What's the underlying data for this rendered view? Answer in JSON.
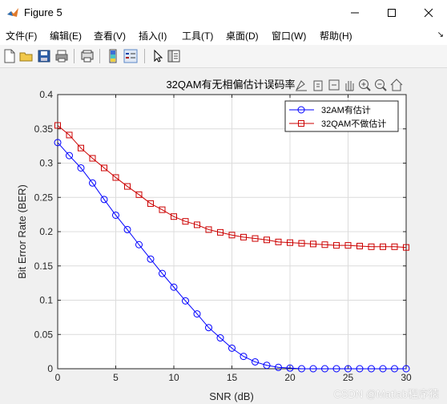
{
  "window": {
    "title": "Figure 5"
  },
  "menu": {
    "items": [
      "文件(F)",
      "编辑(E)",
      "查看(V)",
      "插入(I)",
      "工具(T)",
      "桌面(D)",
      "窗口(W)",
      "帮助(H)"
    ]
  },
  "toolbar": {
    "icons": [
      "new-file-icon",
      "open-folder-icon",
      "save-icon",
      "print-icon",
      "print-preview-icon",
      "colorbar-icon",
      "legend-icon",
      "pointer-icon",
      "property-inspector-icon"
    ]
  },
  "axes_toolbar": {
    "icons": [
      "brush-icon",
      "data-tip-icon",
      "zoom-in-icon",
      "zoom-out-icon",
      "pan-icon",
      "home-icon"
    ]
  },
  "chart_data": {
    "type": "line",
    "title": "32QAM有无相偏估计误码率",
    "xlabel": "SNR (dB)",
    "ylabel": "Bit Error Rate (BER)",
    "xlim": [
      0,
      30
    ],
    "ylim": [
      0,
      0.4
    ],
    "xticks": [
      0,
      5,
      10,
      15,
      20,
      25,
      30
    ],
    "yticks": [
      0,
      0.05,
      0.1,
      0.15,
      0.2,
      0.25,
      0.3,
      0.35,
      0.4
    ],
    "ytick_labels": [
      "0",
      "0.05",
      "0.1",
      "0.15",
      "0.2",
      "0.25",
      "0.3",
      "0.35",
      "0.4"
    ],
    "grid": true,
    "legend_position": "top-right",
    "x": [
      0,
      1,
      2,
      3,
      4,
      5,
      6,
      7,
      8,
      9,
      10,
      11,
      12,
      13,
      14,
      15,
      16,
      17,
      18,
      19,
      20,
      21,
      22,
      23,
      24,
      25,
      26,
      27,
      28,
      29,
      30
    ],
    "series": [
      {
        "name": "32AM有估计",
        "color": "#0000ff",
        "marker": "circle",
        "values": [
          0.33,
          0.311,
          0.293,
          0.271,
          0.247,
          0.224,
          0.203,
          0.181,
          0.16,
          0.139,
          0.119,
          0.099,
          0.08,
          0.06,
          0.045,
          0.03,
          0.018,
          0.01,
          0.005,
          0.002,
          0.001,
          0,
          0,
          0,
          0,
          0,
          0,
          0,
          0,
          0,
          0
        ]
      },
      {
        "name": "32QAM不做估计",
        "color": "#cc0000",
        "marker": "square",
        "values": [
          0.355,
          0.341,
          0.322,
          0.307,
          0.293,
          0.279,
          0.266,
          0.254,
          0.241,
          0.232,
          0.222,
          0.215,
          0.21,
          0.203,
          0.199,
          0.195,
          0.192,
          0.19,
          0.188,
          0.185,
          0.184,
          0.183,
          0.182,
          0.181,
          0.18,
          0.18,
          0.179,
          0.178,
          0.178,
          0.178,
          0.177
        ]
      }
    ]
  },
  "watermark": "CSDN @Matlab程序猿"
}
